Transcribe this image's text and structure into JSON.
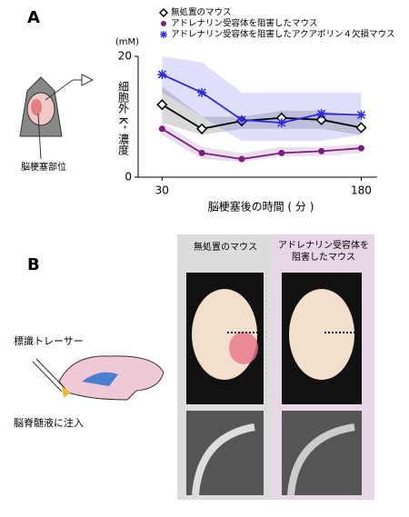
{
  "chart_data": {
    "type": "line",
    "x_label": "脳梗塞後の時間 ( 分 )",
    "y_unit": "(mM)",
    "y_label": "細胞外 K⁺ 濃度",
    "x": [
      30,
      60,
      90,
      120,
      150,
      180
    ],
    "xlim": [
      12,
      192
    ],
    "xticks": [
      30,
      180
    ],
    "ylim": [
      0,
      20
    ],
    "yticks": [
      0,
      20
    ],
    "series": [
      {
        "name": "無処置のマウス",
        "color": "#000000",
        "marker": "diamond",
        "values": [
          12,
          8,
          9.3,
          9.8,
          9.5,
          8.2
        ],
        "lower": [
          9,
          7,
          8,
          8,
          8,
          7
        ],
        "upper": [
          15,
          10,
          10,
          11,
          11,
          10
        ]
      },
      {
        "name": "アドレナリン受容体を阻害したマウス",
        "color": "#7b1f7f",
        "marker": "circle",
        "values": [
          8,
          4,
          3,
          4,
          4.3,
          4.8
        ],
        "lower": [
          7,
          3,
          2.5,
          3.5,
          3.5,
          4
        ],
        "upper": [
          9,
          5,
          4,
          5,
          5,
          5.5
        ]
      },
      {
        "name": "アドレナリン受容体を阻害したアクアポリン４欠損マウス",
        "color": "#2a2ae0",
        "marker": "asterisk",
        "values": [
          17,
          14,
          9.5,
          9,
          10.5,
          10.3
        ],
        "lower": [
          14,
          10,
          6,
          6,
          6,
          7
        ],
        "upper": [
          20,
          19,
          14,
          14,
          14,
          14
        ]
      }
    ]
  },
  "panels": {
    "a": "A",
    "b": "B"
  },
  "panel_a": {
    "site_label": "脳梗塞部位"
  },
  "panel_b": {
    "tracer_label": "標識トレーサー",
    "inject_label": "脳脊髄液に注入",
    "col1": "無処置のマウス",
    "col2_line1": "アドレナリン受容体を",
    "col2_line2": "阻害したマウス"
  }
}
